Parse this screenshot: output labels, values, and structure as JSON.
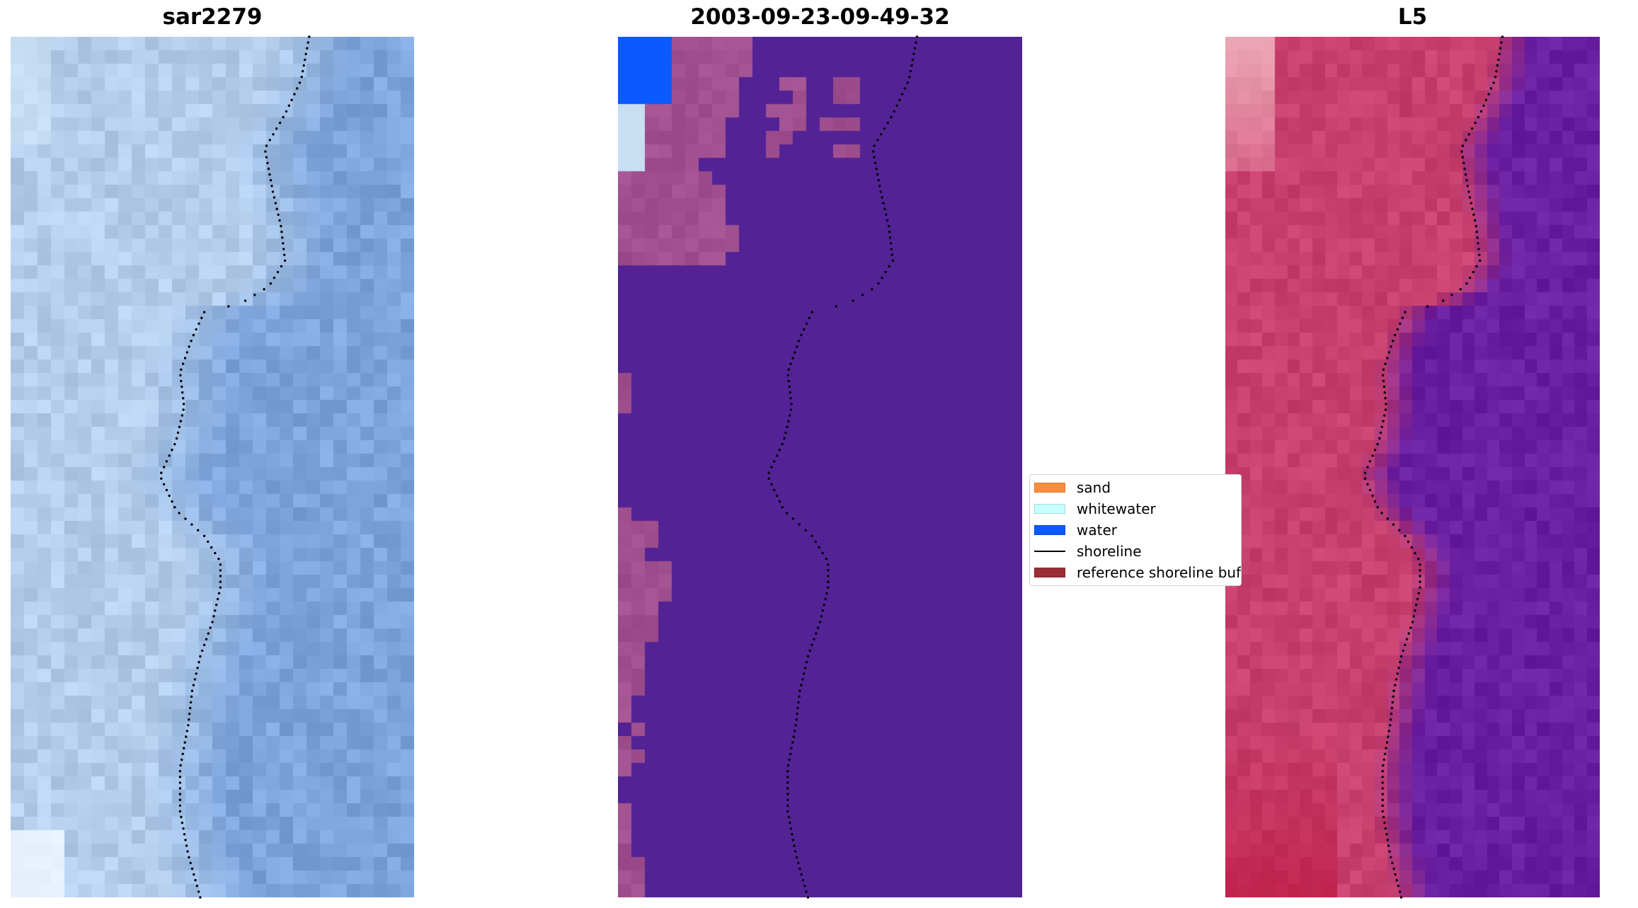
{
  "panels": [
    {
      "title": "sar2279",
      "description": "satellite RGB image of coast with detected shoreline"
    },
    {
      "title": "2003-09-23-09-49-32",
      "description": "classified image overlay"
    },
    {
      "title": "L5",
      "description": "mNDWI index image"
    }
  ],
  "legend": {
    "items": [
      {
        "label": "sand",
        "color": "#ff8c3c",
        "type": "patch"
      },
      {
        "label": "whitewater",
        "color": "#c8ffff",
        "type": "patch"
      },
      {
        "label": "water",
        "color": "#0a5aff",
        "type": "patch"
      },
      {
        "label": "shoreline",
        "color": "#000000",
        "type": "line"
      },
      {
        "label": "reference shoreline buffer",
        "color": "#9b2d35",
        "type": "patch"
      }
    ]
  },
  "colors": {
    "sar_base": "#8db0e0",
    "class_background": "#532295",
    "class_sand": "#a0508f",
    "class_water": "#0a5aff",
    "class_whitewater": "#c8e0f0",
    "index_land": "#c8406e",
    "index_water": "#6a1ea0"
  }
}
